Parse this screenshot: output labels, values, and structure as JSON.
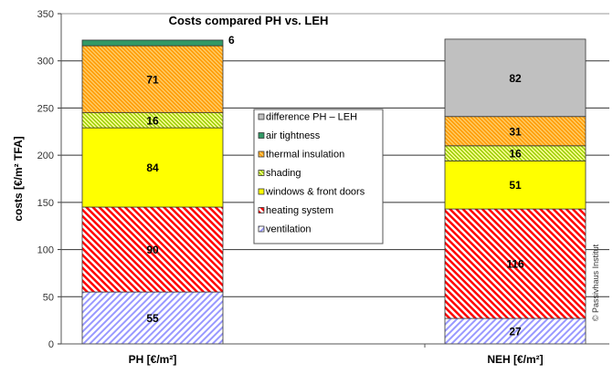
{
  "chart_data": {
    "type": "bar",
    "stacked": true,
    "title": "Costs compared PH  vs.  LEH",
    "xlabel": "",
    "ylabel": "costs [€/m² TFA]",
    "ylim": [
      0,
      350
    ],
    "yticks": [
      0,
      50,
      100,
      150,
      200,
      250,
      300,
      350
    ],
    "grid": "horizontal",
    "legend_position": "center",
    "categories": [
      "PH [€/m²]",
      "NEH [€/m²]"
    ],
    "series": [
      {
        "name": "ventilation",
        "color": "#9999ff",
        "pattern": "diag-up",
        "values": [
          55,
          27
        ]
      },
      {
        "name": "heating system",
        "color": "#ff0000",
        "pattern": "diag-down-wide",
        "values": [
          90,
          116
        ]
      },
      {
        "name": "windows & front doors",
        "color": "#ffff00",
        "pattern": "solid",
        "values": [
          84,
          51
        ]
      },
      {
        "name": "shading",
        "color": "#99cc00",
        "pattern": "diag-down-fine",
        "values": [
          16,
          16
        ]
      },
      {
        "name": "thermal insulation",
        "color": "#ff9900",
        "pattern": "diag-down-fine",
        "values": [
          71,
          31
        ]
      },
      {
        "name": "air tightness",
        "color": "#339966",
        "pattern": "solid",
        "values": [
          6,
          0
        ]
      },
      {
        "name": "difference PH – LEH",
        "color": "#c0c0c0",
        "pattern": "solid",
        "values": [
          0,
          82
        ]
      }
    ],
    "legend_order": [
      "difference PH – LEH",
      "air tightness",
      "thermal insulation",
      "shading",
      "windows & front doors",
      "heating system",
      "ventilation"
    ],
    "annotations": [
      "© Passivhaus  Institut"
    ]
  }
}
